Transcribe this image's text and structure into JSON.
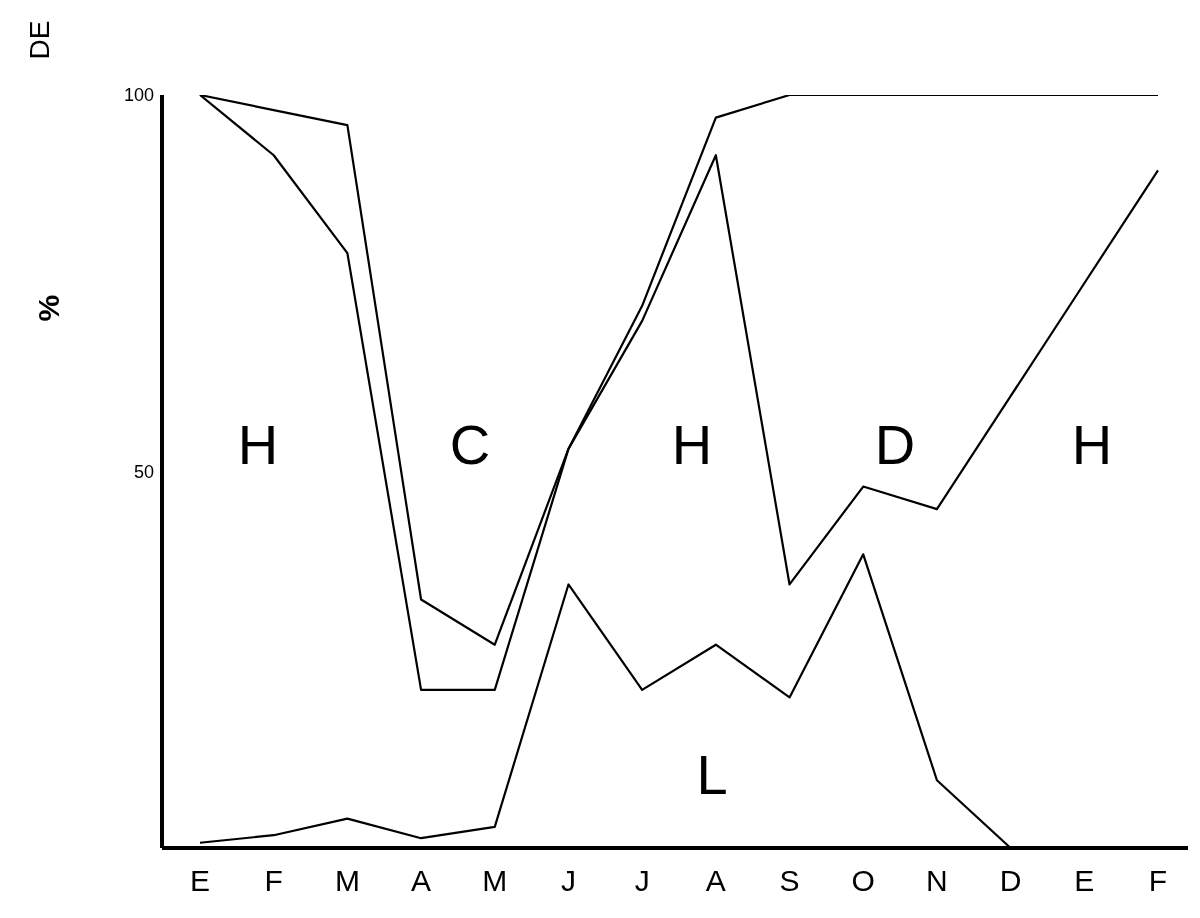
{
  "chart_data": {
    "type": "line",
    "ylabel": "%",
    "categories": [
      "E",
      "F",
      "M",
      "A",
      "M",
      "J",
      "J",
      "A",
      "S",
      "O",
      "N",
      "D",
      "E",
      "F"
    ],
    "series": [
      {
        "color": "#000000",
        "values": [
          100,
          98,
          96,
          33,
          27,
          53,
          72,
          97,
          100,
          100,
          100,
          100,
          100,
          100
        ]
      },
      {
        "color": "#000000",
        "values": [
          100,
          92,
          79,
          21,
          21,
          53,
          70,
          92,
          35,
          48,
          45,
          60,
          75,
          90
        ]
      },
      {
        "color": "#000000",
        "values": [
          0.7,
          1.7,
          3.9,
          1.3,
          2.8,
          35,
          21,
          27,
          20,
          39,
          9,
          0,
          null,
          null
        ]
      }
    ],
    "ylim": [
      0,
      100
    ],
    "yticks": [
      50,
      100
    ],
    "grid": false,
    "legend": false,
    "marker": "none",
    "line_style": "solid",
    "annotations": [
      "H",
      "C",
      "H",
      "D",
      "H",
      "L",
      "DE"
    ]
  }
}
